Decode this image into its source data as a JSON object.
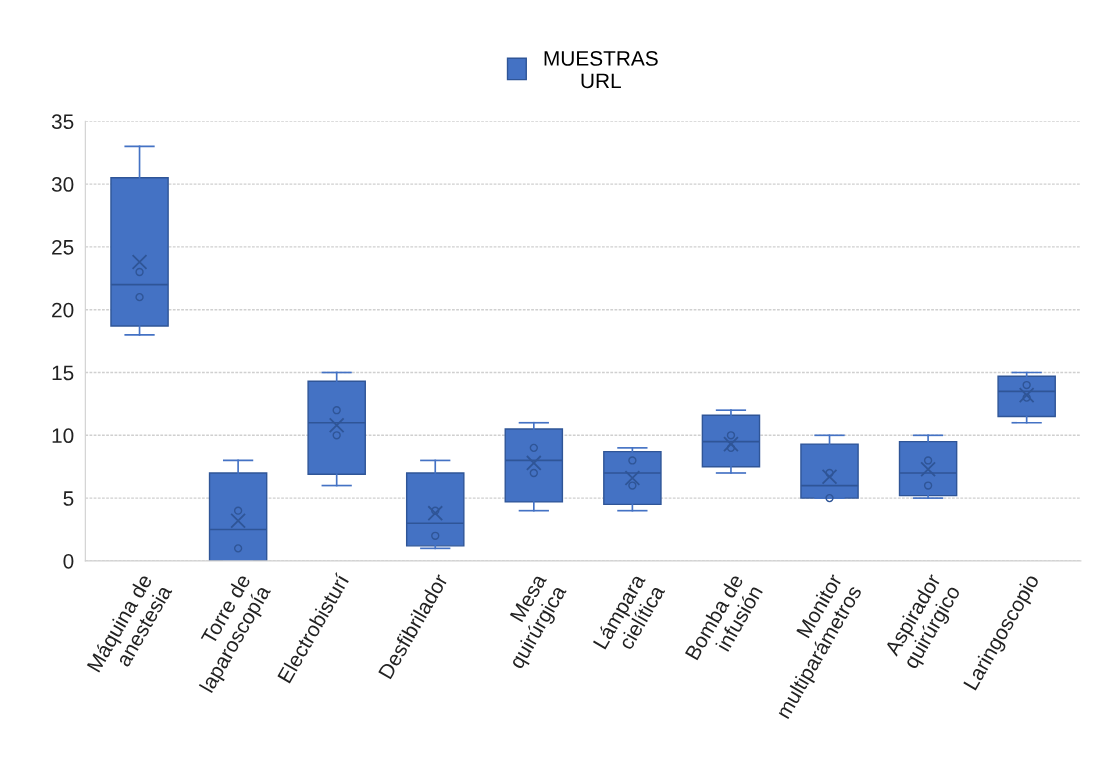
{
  "chart_data": {
    "type": "box",
    "categories": [
      "Máquina de anestesia",
      "Torre de laparoscopía",
      "Electrobisturí",
      "Desfibrilador",
      "Mesa quirúrgica",
      "Lámpara cielítica",
      "Bomba de infusión",
      "Monitor multiparámetros",
      "Aspirador quirúrgico",
      "Laringoscopio"
    ],
    "series": [
      {
        "name": "MUESTRAS URL",
        "color": "#4472c4",
        "boxes": [
          {
            "low": 18,
            "q1": 18.7,
            "median": 22,
            "q3": 30.5,
            "high": 33,
            "mean": 23.8,
            "outliers": [
              23,
              21
            ]
          },
          {
            "low": 0,
            "q1": 0,
            "median": 2.5,
            "q3": 7,
            "high": 8,
            "mean": 3.2,
            "outliers": [
              4,
              1
            ]
          },
          {
            "low": 6,
            "q1": 6.9,
            "median": 11,
            "q3": 14.3,
            "high": 15,
            "mean": 10.8,
            "outliers": [
              12,
              10
            ]
          },
          {
            "low": 1,
            "q1": 1.2,
            "median": 3,
            "q3": 7,
            "high": 8,
            "mean": 3.8,
            "outliers": [
              4,
              2
            ]
          },
          {
            "low": 4,
            "q1": 4.7,
            "median": 8,
            "q3": 10.5,
            "high": 11,
            "mean": 7.8,
            "outliers": [
              9,
              7
            ]
          },
          {
            "low": 4,
            "q1": 4.5,
            "median": 7,
            "q3": 8.7,
            "high": 9,
            "mean": 6.6,
            "outliers": [
              8,
              6
            ]
          },
          {
            "low": 7,
            "q1": 7.5,
            "median": 9.5,
            "q3": 11.6,
            "high": 12,
            "mean": 9.3,
            "outliers": [
              10,
              9
            ]
          },
          {
            "low": 5,
            "q1": 5,
            "median": 6,
            "q3": 9.3,
            "high": 10,
            "mean": 6.7,
            "outliers": [
              7,
              5
            ]
          },
          {
            "low": 5,
            "q1": 5.2,
            "median": 7,
            "q3": 9.5,
            "high": 10,
            "mean": 7.3,
            "outliers": [
              8,
              6
            ]
          },
          {
            "low": 11,
            "q1": 11.5,
            "median": 13.5,
            "q3": 14.7,
            "high": 15,
            "mean": 13.2,
            "outliers": [
              14,
              13
            ]
          }
        ]
      }
    ],
    "ylim": [
      0,
      35
    ],
    "yticks": [
      0,
      5,
      10,
      15,
      20,
      25,
      30,
      35
    ],
    "grid": "y",
    "legend": "top"
  }
}
